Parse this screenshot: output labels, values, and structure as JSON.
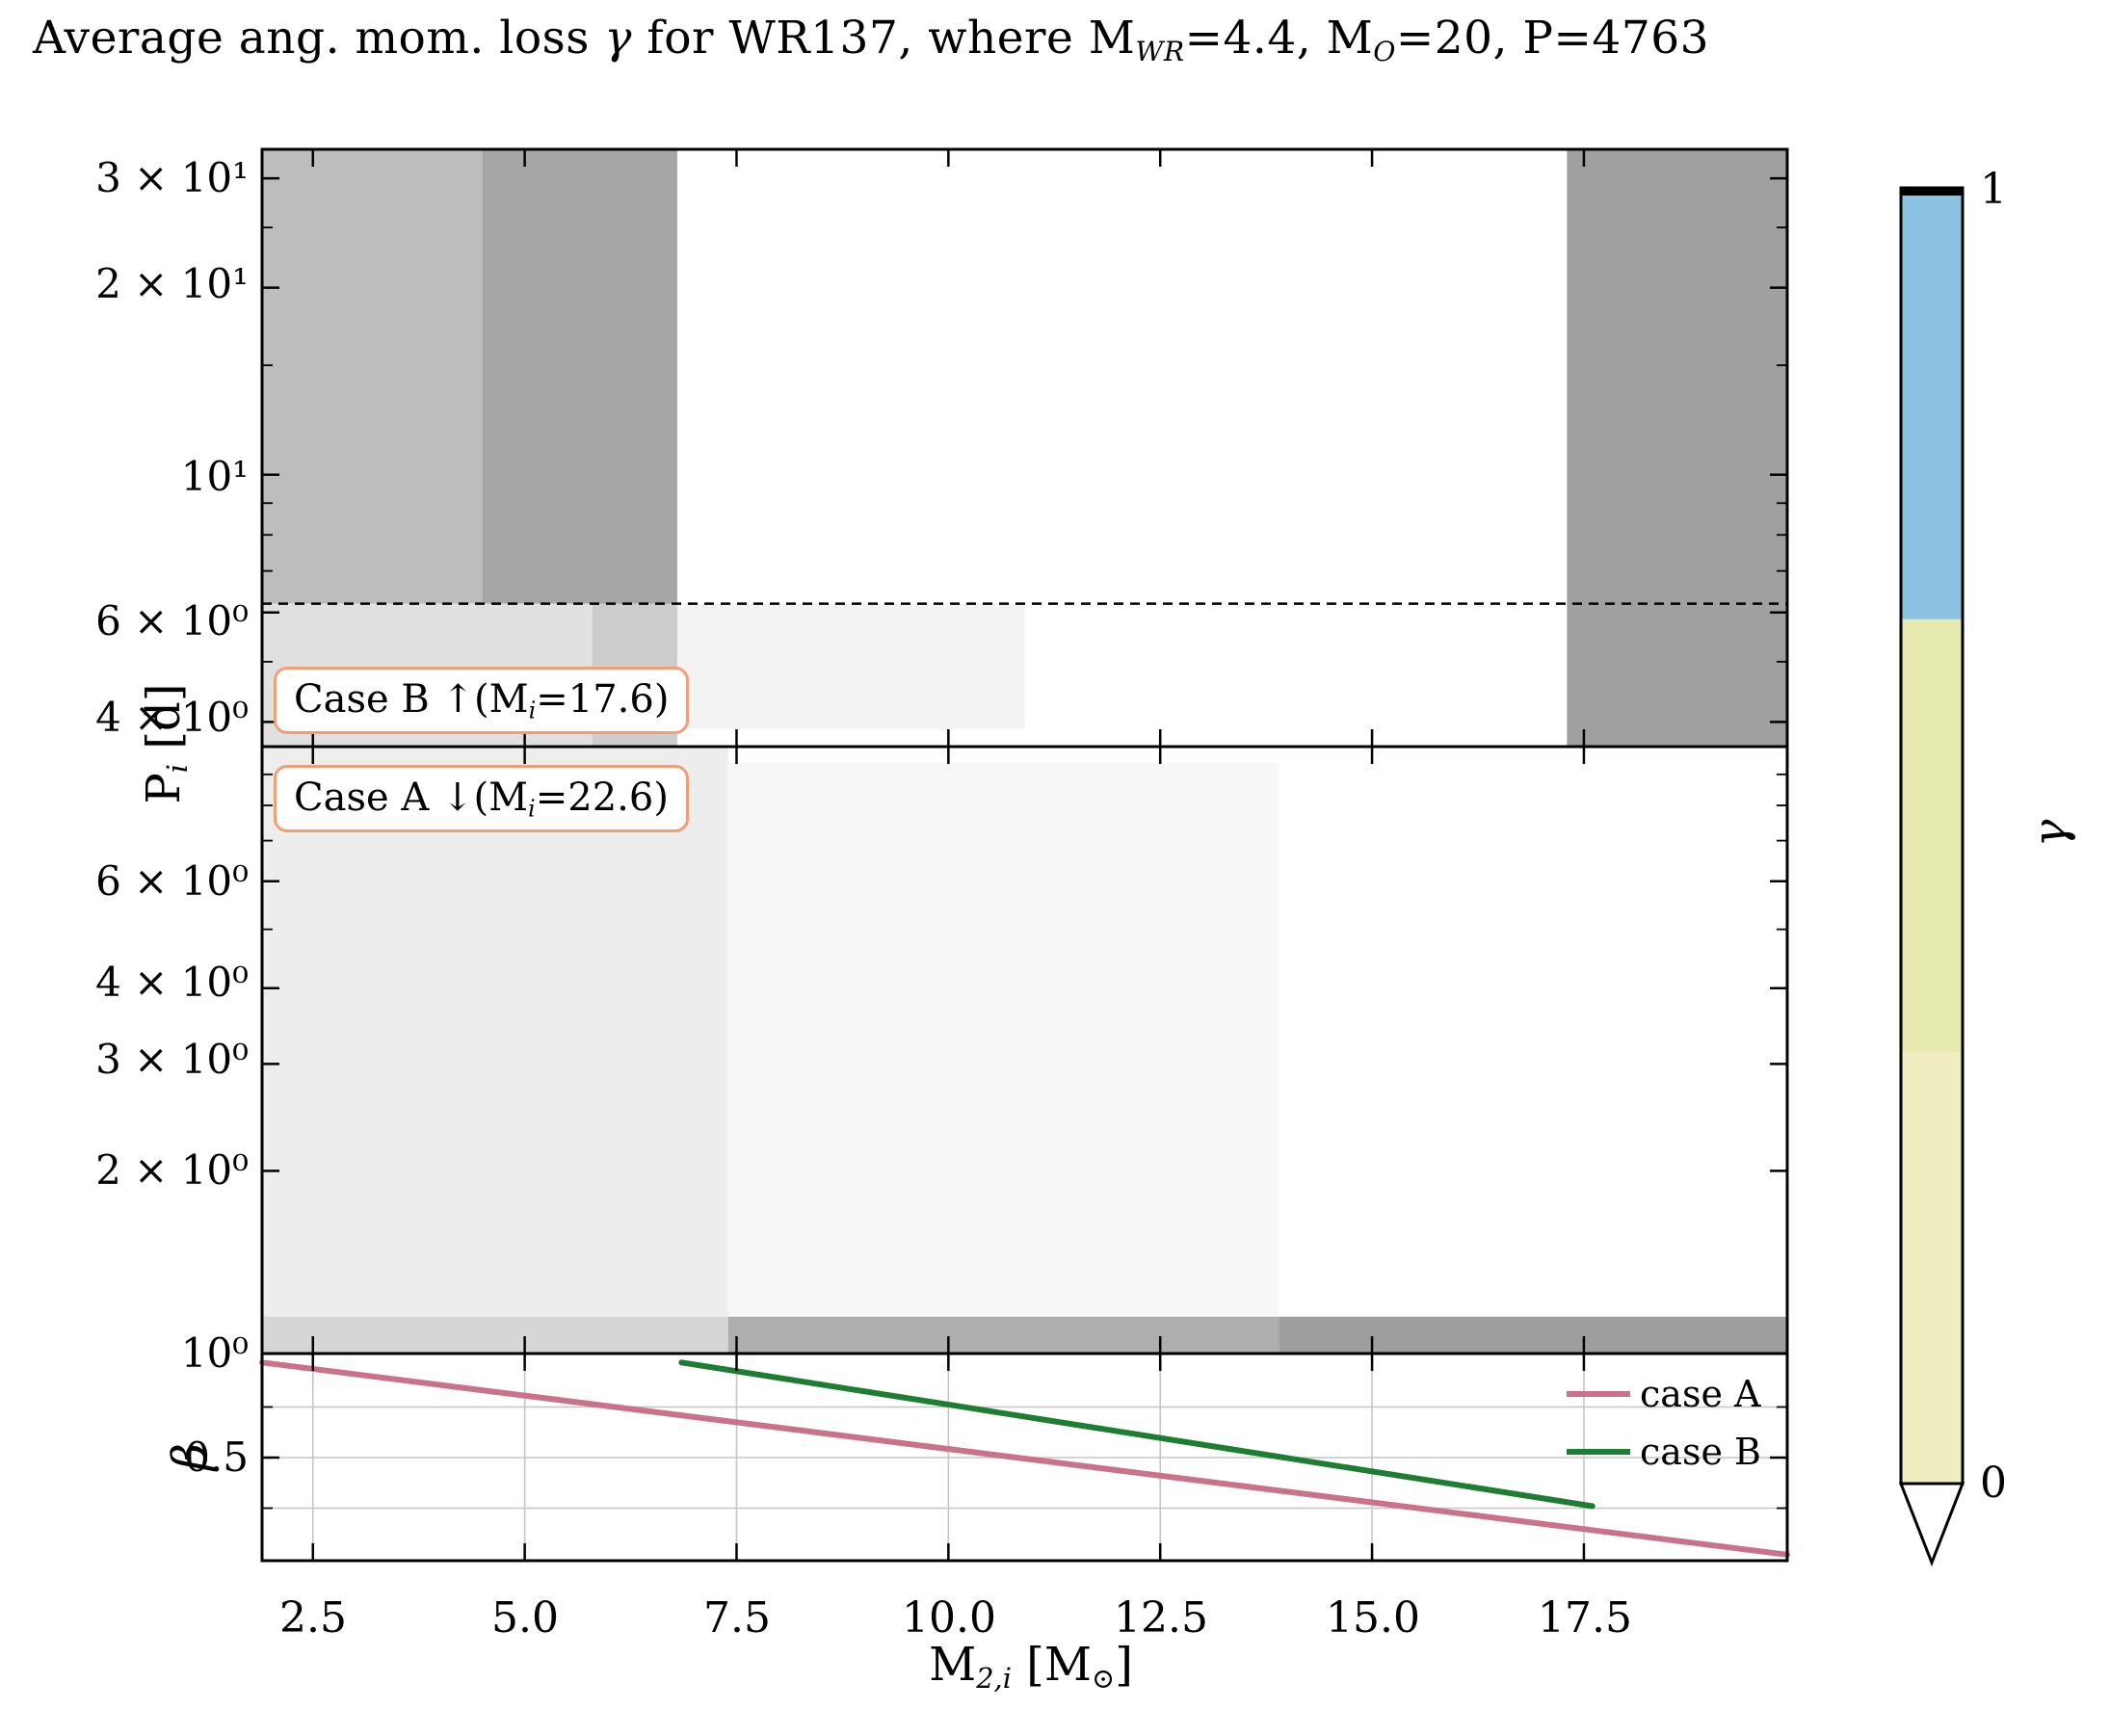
{
  "title": {
    "p1": "Average ang. mom. loss ",
    "gamma": "γ",
    "p2": " for WR137, where M",
    "sub1": "WR",
    "p3": "=4.4, M",
    "sub2": "O",
    "p4": "=20, P=4763"
  },
  "axes": {
    "x_label": {
      "p1": "M",
      "sub1": "2,i",
      "p2": " [M",
      "sub2": "⊙",
      "p3": "]"
    },
    "x_ticks": [
      "2.5",
      "5.0",
      "7.5",
      "10.0",
      "12.5",
      "15.0",
      "17.5"
    ],
    "y_label_period": {
      "p1": "P",
      "sub": "i",
      "p2": " [d]"
    },
    "y_label_beta": "β",
    "y_ticks_p1": [
      "3 × 10¹",
      "2 × 10¹",
      "10¹",
      "6 × 10⁰",
      "4 × 10⁰"
    ],
    "y_ticks_p2": [
      "6 × 10⁰",
      "4 × 10⁰",
      "3 × 10⁰",
      "2 × 10⁰",
      "10⁰"
    ],
    "y_ticks_p3": [
      "0.5"
    ]
  },
  "annotations": {
    "border_color": "#f19e77",
    "case_b": {
      "p1": "Case B ↑(M",
      "sub": "i",
      "p2": "=17.6)"
    },
    "case_a": {
      "p1": "Case A ↓(M",
      "sub": "i",
      "p2": "=22.6)"
    }
  },
  "colorbar_ui": {
    "label": "γ",
    "tick_top": "1",
    "tick_bottom": "0"
  },
  "chart_data": {
    "type": "heatmap+line",
    "title": "Average ang. mom. loss γ for WR137, where M_WR=4.4, M_O=20, P=4763",
    "x_label": "M_2,i [M_sun]",
    "x_range": [
      1.9,
      19.9
    ],
    "x_ticks": [
      2.5,
      5.0,
      7.5,
      10.0,
      12.5,
      15.0,
      17.5
    ],
    "panels": [
      {
        "name": "initial_period_upper_Pi_days",
        "y_scale": "log",
        "y_range": [
          3.65,
          33.4
        ],
        "y_ticks": [
          30,
          20,
          10,
          6,
          4
        ],
        "y_minor_ticks": [
          5,
          7,
          8,
          9,
          15,
          25
        ],
        "dashed_line_y": 6.2,
        "annotation": "Case B ↑(M_i=17.6)",
        "regions": [
          {
            "x": [
              1.9,
              4.5
            ],
            "y": [
              6.2,
              33.4
            ],
            "shade": "#bdbdbd"
          },
          {
            "x": [
              4.5,
              6.8
            ],
            "y": [
              6.2,
              33.4
            ],
            "shade": "#a6a6a6"
          },
          {
            "x": [
              1.9,
              5.8
            ],
            "y": [
              3.65,
              6.2
            ],
            "shade": "#e0e0e0"
          },
          {
            "x": [
              5.8,
              6.8
            ],
            "y": [
              3.65,
              6.2
            ],
            "shade": "#cccccc"
          },
          {
            "x": [
              6.8,
              10.9
            ],
            "y": [
              3.9,
              6.2
            ],
            "shade": "#f3f3f3"
          },
          {
            "x": [
              17.3,
              19.9
            ],
            "y": [
              3.65,
              33.4
            ],
            "shade": "#a0a0a0"
          }
        ]
      },
      {
        "name": "initial_period_lower_Pi_days",
        "y_scale": "log",
        "y_range": [
          1.0,
          10.0
        ],
        "y_ticks": [
          6,
          4,
          3,
          2,
          1
        ],
        "y_minor_ticks": [
          5,
          7,
          8,
          9
        ],
        "annotation": "Case A ↓(M_i=22.6)",
        "regions": [
          {
            "x": [
              1.9,
              7.4
            ],
            "y": [
              1.15,
              10.0
            ],
            "shade": "#ededed"
          },
          {
            "x": [
              7.4,
              13.9
            ],
            "y": [
              1.15,
              9.4
            ],
            "shade": "#f7f7f7"
          },
          {
            "x": [
              1.9,
              7.4
            ],
            "y": [
              1.0,
              1.15
            ],
            "shade": "#d6d6d6"
          },
          {
            "x": [
              7.4,
              13.9
            ],
            "y": [
              1.0,
              1.15
            ],
            "shade": "#aeaeae"
          },
          {
            "x": [
              13.9,
              19.9
            ],
            "y": [
              1.0,
              1.15
            ],
            "shade": "#9e9e9e"
          }
        ]
      },
      {
        "name": "beta_mass_transfer_efficiency",
        "y_scale": "linear",
        "y_range": [
          0,
          1
        ],
        "y_ticks": [
          0.5
        ],
        "y_minor_ticks": [
          0.25,
          0.75
        ],
        "grid_y": [
          0.25,
          0.5,
          0.75
        ],
        "series": [
          {
            "name": "case A",
            "color": "#c9728a",
            "points": [
              [
                1.9,
                0.97
              ],
              [
                19.9,
                0.02
              ]
            ]
          },
          {
            "name": "case B",
            "color": "#1d7d31",
            "points": [
              [
                6.85,
                0.97
              ],
              [
                17.6,
                0.26
              ]
            ]
          }
        ]
      }
    ],
    "colorbar": {
      "label": "γ",
      "range": [
        0,
        1
      ],
      "extend": "min",
      "segments": [
        {
          "v": [
            0.667,
            1.0
          ],
          "color": "#8cc3e2"
        },
        {
          "v": [
            0.333,
            0.667
          ],
          "color": "#e6eaaf"
        },
        {
          "v": [
            0.0,
            0.333
          ],
          "color": "#f0edc0"
        }
      ]
    }
  }
}
